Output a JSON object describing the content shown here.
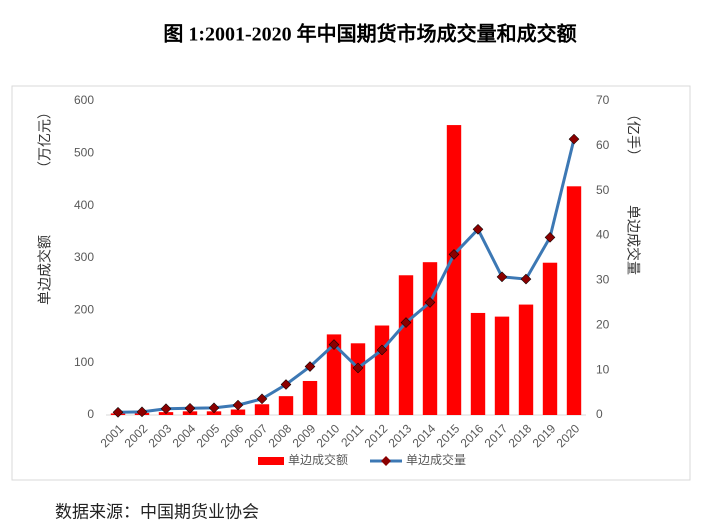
{
  "chart_data": {
    "type": "bar-line",
    "title": "图 1:2001-2020 年中国期货市场成交量和成交额",
    "y_label": "单边成交额",
    "y_unit": "（万亿元）",
    "y2_label": "单边成交量",
    "y2_unit": "（亿手）",
    "source": "数据来源：中国期货业协会",
    "categories": [
      "2001",
      "2002",
      "2003",
      "2004",
      "2005",
      "2006",
      "2007",
      "2008",
      "2009",
      "2010",
      "2011",
      "2012",
      "2013",
      "2014",
      "2015",
      "2016",
      "2017",
      "2018",
      "2019",
      "2020"
    ],
    "series": [
      {
        "name": "单边成交额",
        "type": "bar",
        "color": "#ff0000",
        "values": [
          3,
          4,
          5.5,
          7,
          7,
          10.5,
          20.5,
          36,
          65,
          154,
          137,
          171,
          267,
          292,
          554,
          195,
          188,
          211,
          291,
          437
        ]
      },
      {
        "name": "单边成交量",
        "type": "line",
        "axis": "y2",
        "color": "#3c78b4",
        "marker_color": "#8b0000",
        "values": [
          0.6,
          0.7,
          1.4,
          1.5,
          1.6,
          2.2,
          3.6,
          6.8,
          10.8,
          15.7,
          10.5,
          14.5,
          20.6,
          25.1,
          35.8,
          41.4,
          30.8,
          30.3,
          39.6,
          61.5
        ]
      }
    ],
    "ylim": [
      0,
      600
    ],
    "yticks": [
      0,
      100,
      200,
      300,
      400,
      500,
      600
    ],
    "y2lim": [
      0,
      70
    ],
    "y2ticks": [
      0,
      10,
      20,
      30,
      40,
      50,
      60,
      70
    ],
    "legend": "bottom"
  }
}
